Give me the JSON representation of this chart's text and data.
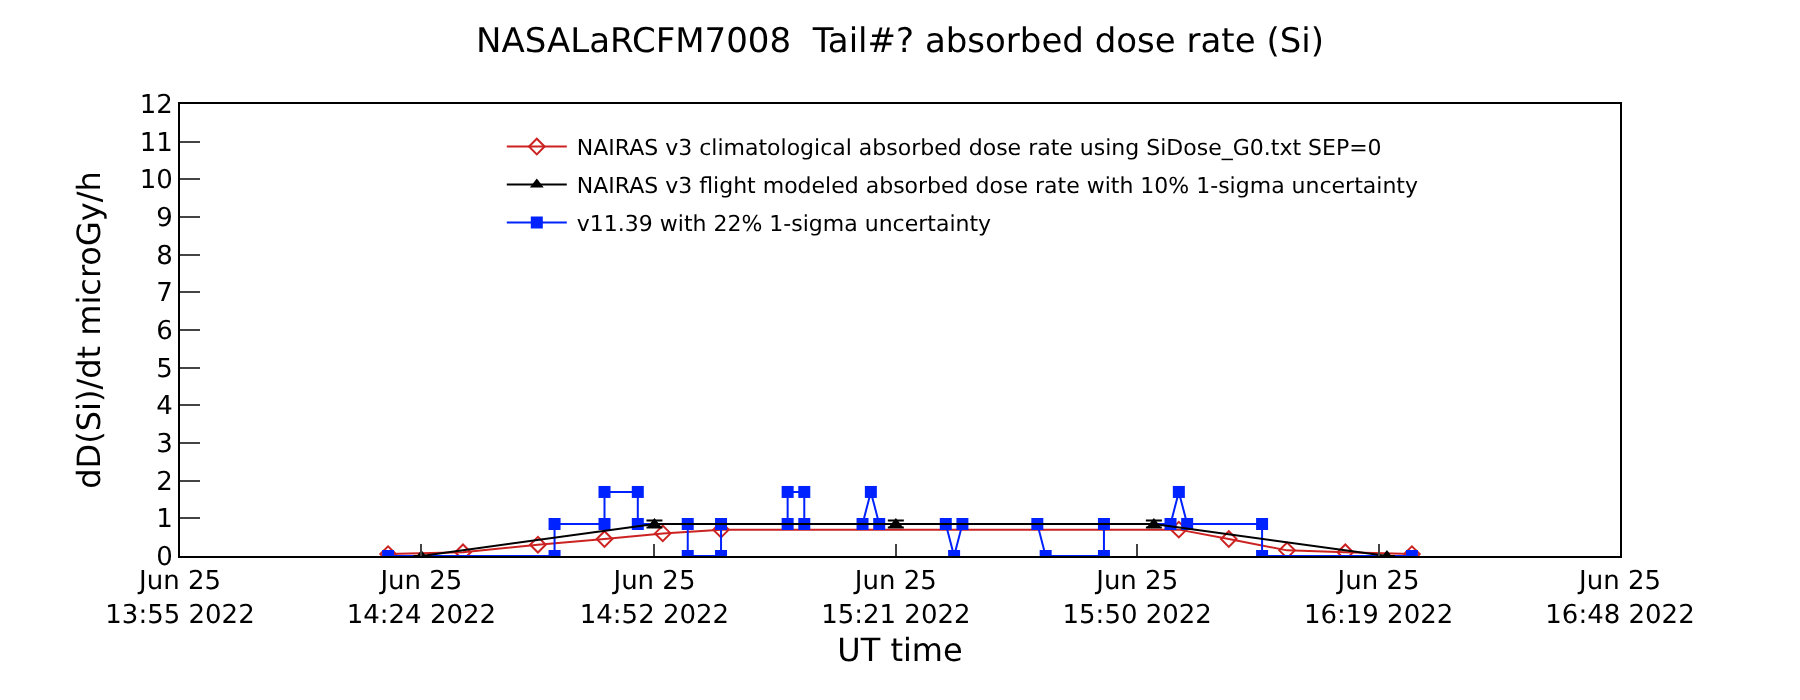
{
  "chart_data": {
    "type": "line",
    "title": "NASALaRCFM7008  Tail#? absorbed dose rate (Si)",
    "xlabel": "UT time",
    "ylabel": "dD(Si)/dt microGy/h",
    "xlim": [
      "2022-06-25T13:55",
      "2022-06-25T16:48"
    ],
    "ylim": [
      0,
      12
    ],
    "xticks": [
      {
        "value": "2022-06-25T13:55",
        "label": "Jun 25\n13:55 2022"
      },
      {
        "value": "2022-06-25T14:24",
        "label": "Jun 25\n14:24 2022"
      },
      {
        "value": "2022-06-25T14:52",
        "label": "Jun 25\n14:52 2022"
      },
      {
        "value": "2022-06-25T15:21",
        "label": "Jun 25\n15:21 2022"
      },
      {
        "value": "2022-06-25T15:50",
        "label": "Jun 25\n15:50 2022"
      },
      {
        "value": "2022-06-25T16:19",
        "label": "Jun 25\n16:19 2022"
      },
      {
        "value": "2022-06-25T16:48",
        "label": "Jun 25\n16:48 2022"
      }
    ],
    "yticks": [
      0,
      1,
      2,
      3,
      4,
      5,
      6,
      7,
      8,
      9,
      10,
      11,
      12
    ],
    "legend": "top",
    "series": [
      {
        "name": "NAIRAS v3 climatological absorbed dose rate using SiDose_G0.txt SEP=0",
        "color": "#cc2222",
        "marker": "diamond",
        "x": [
          "2022-06-25T14:20",
          "2022-06-25T14:29",
          "2022-06-25T14:38",
          "2022-06-25T14:46",
          "2022-06-25T14:53",
          "2022-06-25T15:00",
          "2022-06-25T15:55",
          "2022-06-25T16:01",
          "2022-06-25T16:08",
          "2022-06-25T16:15",
          "2022-06-25T16:23"
        ],
        "values": [
          0.05,
          0.1,
          0.3,
          0.45,
          0.6,
          0.7,
          0.7,
          0.45,
          0.15,
          0.1,
          0.05
        ]
      },
      {
        "name": "NAIRAS v3 flight modeled absorbed dose rate with 10% 1-sigma uncertainty",
        "color": "#000000",
        "marker": "triangle",
        "x": [
          "2022-06-25T14:24",
          "2022-06-25T14:52",
          "2022-06-25T15:21",
          "2022-06-25T15:52",
          "2022-06-25T16:20"
        ],
        "values": [
          0,
          0.85,
          0.85,
          0.85,
          0
        ],
        "errors": [
          null,
          0.09,
          0.09,
          0.09,
          null
        ]
      },
      {
        "name": "v11.39 with 22% 1-sigma uncertainty",
        "color": "#0022ff",
        "marker": "square",
        "x": [
          "2022-06-25T14:20",
          "2022-06-25T14:40",
          "2022-06-25T14:40",
          "2022-06-25T14:46",
          "2022-06-25T14:46",
          "2022-06-25T14:50",
          "2022-06-25T14:50",
          "2022-06-25T14:56",
          "2022-06-25T14:56",
          "2022-06-25T15:00",
          "2022-06-25T15:00",
          "2022-06-25T15:08",
          "2022-06-25T15:08",
          "2022-06-25T15:10",
          "2022-06-25T15:10",
          "2022-06-25T15:17",
          "2022-06-25T15:18",
          "2022-06-25T15:19",
          "2022-06-25T15:27",
          "2022-06-25T15:28",
          "2022-06-25T15:29",
          "2022-06-25T15:38",
          "2022-06-25T15:39",
          "2022-06-25T15:46",
          "2022-06-25T15:46",
          "2022-06-25T15:54",
          "2022-06-25T15:55",
          "2022-06-25T15:56",
          "2022-06-25T16:05",
          "2022-06-25T16:05",
          "2022-06-25T16:23"
        ],
        "values": [
          0,
          0,
          0.85,
          0.85,
          1.7,
          1.7,
          0.85,
          0.85,
          0,
          0,
          0.85,
          0.85,
          1.7,
          1.7,
          0.85,
          0.85,
          1.7,
          0.85,
          0.85,
          0,
          0.85,
          0.85,
          0,
          0,
          0.85,
          0.85,
          1.7,
          0.85,
          0.85,
          0,
          0
        ]
      }
    ]
  }
}
